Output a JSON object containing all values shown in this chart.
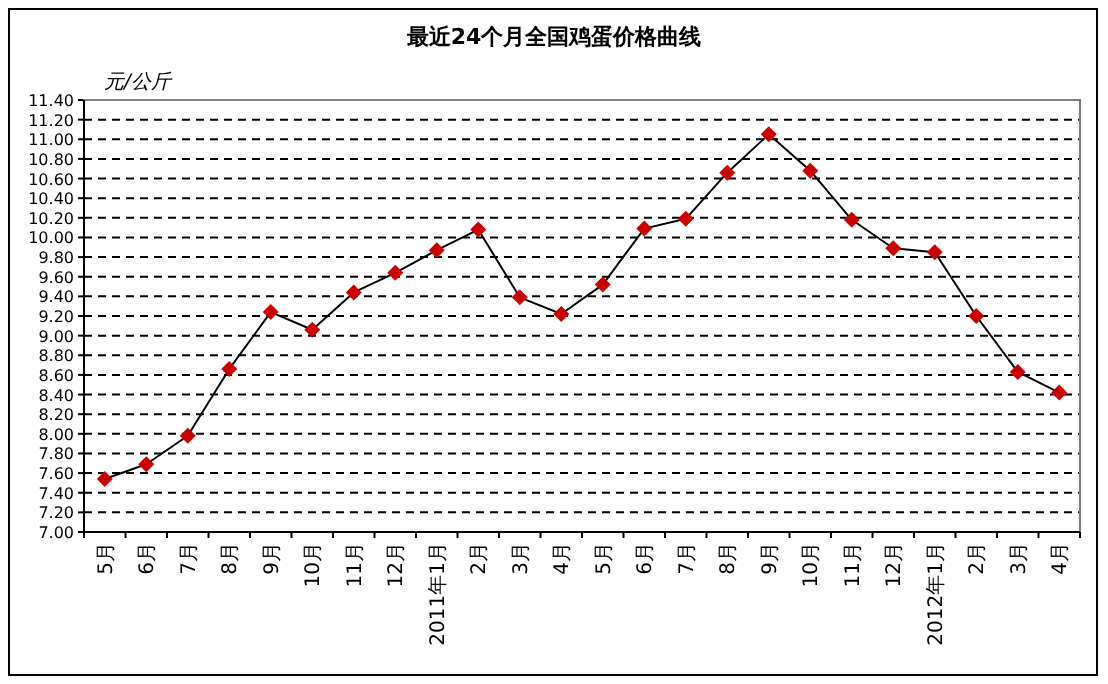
{
  "chart_data": {
    "type": "line",
    "title": "最近24个月全国鸡蛋价格曲线",
    "ylabel": "元/公斤",
    "categories": [
      "5月",
      "6月",
      "7月",
      "8月",
      "9月",
      "10月",
      "11月",
      "12月",
      "2011年1月",
      "2月",
      "3月",
      "4月",
      "5月",
      "6月",
      "7月",
      "8月",
      "9月",
      "10月",
      "11月",
      "12月",
      "2012年1月",
      "2月",
      "3月",
      "4月"
    ],
    "series": [
      {
        "color": "#cc0000",
        "values": [
          7.54,
          7.69,
          7.98,
          8.66,
          9.24,
          9.06,
          9.44,
          9.64,
          9.87,
          10.08,
          9.39,
          9.22,
          9.52,
          10.09,
          10.19,
          10.66,
          11.05,
          10.68,
          10.18,
          9.89,
          9.85,
          9.2,
          8.63,
          8.42
        ]
      }
    ],
    "ylim": [
      7.0,
      11.4
    ],
    "yticks": [
      {
        "value": 7.0,
        "label": "7.00"
      },
      {
        "value": 7.2,
        "label": "7.20"
      },
      {
        "value": 7.4,
        "label": "7.40"
      },
      {
        "value": 7.6,
        "label": "7.60"
      },
      {
        "value": 7.8,
        "label": "7.80"
      },
      {
        "value": 8.0,
        "label": "8.00"
      },
      {
        "value": 8.2,
        "label": "8.20"
      },
      {
        "value": 8.4,
        "label": "8.40"
      },
      {
        "value": 8.6,
        "label": "8.60"
      },
      {
        "value": 8.8,
        "label": "8.80"
      },
      {
        "value": 9.0,
        "label": "9.00"
      },
      {
        "value": 9.2,
        "label": "9.20"
      },
      {
        "value": 9.4,
        "label": "9.40"
      },
      {
        "value": 9.6,
        "label": "9.60"
      },
      {
        "value": 9.8,
        "label": "9.80"
      },
      {
        "value": 10.0,
        "label": "10.00"
      },
      {
        "value": 10.2,
        "label": "10.20"
      },
      {
        "value": 10.4,
        "label": "10.40"
      },
      {
        "value": 10.6,
        "label": "10.60"
      },
      {
        "value": 10.8,
        "label": "10.80"
      },
      {
        "value": 11.0,
        "label": "11.00"
      },
      {
        "value": 11.2,
        "label": "11.20"
      },
      {
        "value": 11.4,
        "label": "11.40"
      }
    ],
    "grid": "y",
    "marker": "diamond",
    "line_style": "solid"
  }
}
